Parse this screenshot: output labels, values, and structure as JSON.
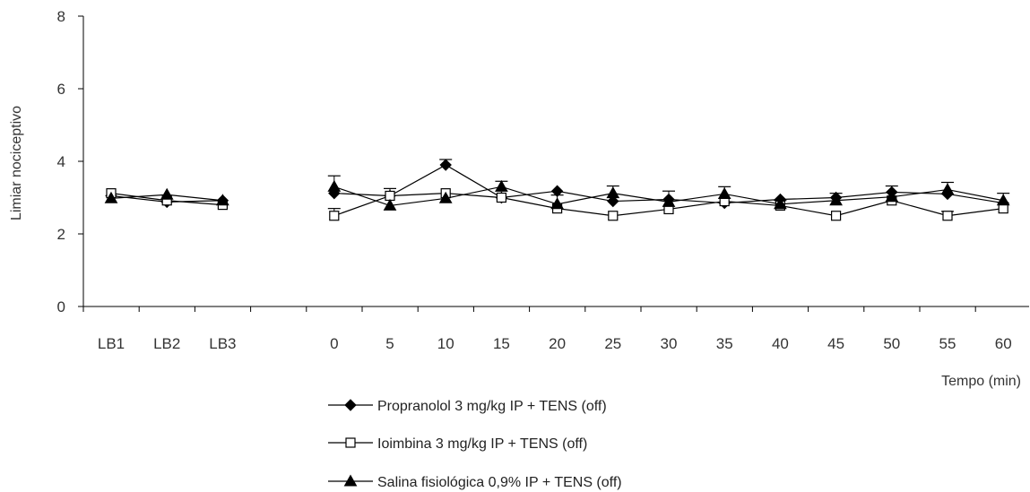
{
  "chart_data": {
    "type": "line",
    "title": "",
    "ylabel": "Limiar nociceptivo",
    "xlabel": "Tempo (min)",
    "ylim": [
      0,
      8
    ],
    "yticks": [
      0,
      2,
      4,
      6,
      8
    ],
    "categories": [
      "LB1",
      "LB2",
      "LB3",
      "",
      "0",
      "5",
      "10",
      "15",
      "20",
      "25",
      "30",
      "35",
      "40",
      "45",
      "50",
      "55",
      "60"
    ],
    "grid": false,
    "legend_position": "bottom",
    "series": [
      {
        "name": "Propranolol 3 mg/kg IP + TENS (off)",
        "marker": "diamond-filled",
        "color": "#000000",
        "values": [
          3.05,
          2.88,
          2.92,
          null,
          3.12,
          3.05,
          3.9,
          3.0,
          3.18,
          2.9,
          2.95,
          2.85,
          2.95,
          3.0,
          3.15,
          3.1,
          2.85
        ],
        "errors": [
          0,
          0,
          0,
          null,
          0,
          0,
          0.15,
          0,
          0,
          0,
          0,
          0,
          0,
          0,
          0,
          0,
          0
        ]
      },
      {
        "name": "Ioimbina 3 mg/kg IP + TENS (off)",
        "marker": "square-open",
        "color": "#000000",
        "values": [
          3.12,
          2.92,
          2.8,
          null,
          2.5,
          3.05,
          3.12,
          3.0,
          2.7,
          2.5,
          2.68,
          2.9,
          2.78,
          2.5,
          2.92,
          2.5,
          2.7
        ],
        "errors": [
          0,
          0,
          0,
          null,
          0.2,
          0.2,
          0,
          0,
          0,
          0,
          0,
          0,
          0,
          0,
          0,
          0.12,
          0
        ]
      },
      {
        "name": "Salina fisiológica 0,9% IP + TENS (off)",
        "marker": "triangle-filled",
        "color": "#000000",
        "values": [
          2.98,
          3.08,
          2.92,
          null,
          3.3,
          2.78,
          2.98,
          3.3,
          2.82,
          3.12,
          2.88,
          3.1,
          2.82,
          2.92,
          3.02,
          3.22,
          2.92
        ],
        "errors": [
          0,
          0,
          0,
          null,
          0.3,
          0,
          0,
          0.15,
          0.25,
          0.2,
          0.3,
          0.2,
          0.1,
          0.2,
          0.3,
          0.2,
          0.2
        ]
      }
    ]
  }
}
